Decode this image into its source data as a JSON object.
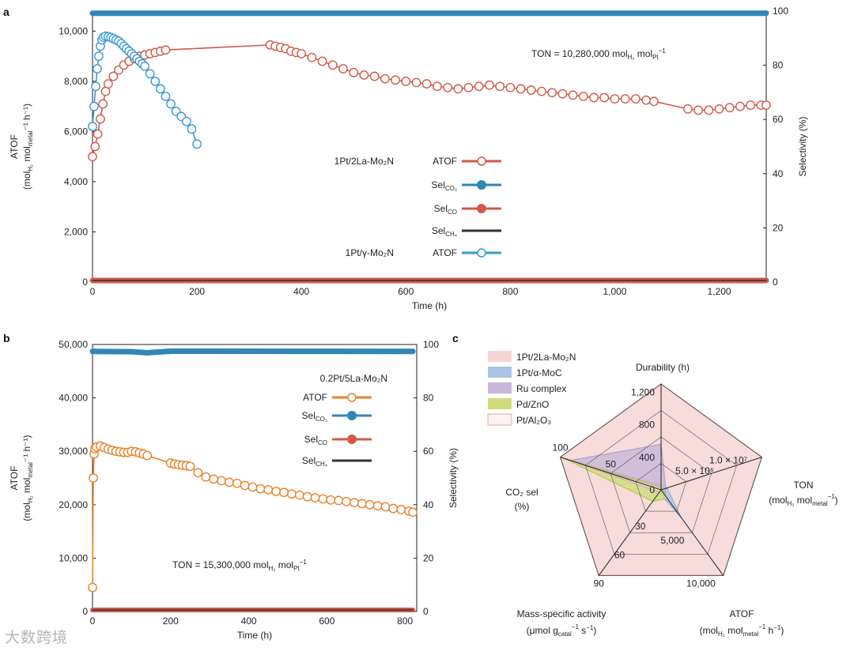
{
  "panels": {
    "a": "a",
    "b": "b",
    "c": "c"
  },
  "watermark": "大数跨境",
  "colors": {
    "red": "#d05a4a",
    "blue": "#2f86b7",
    "blue_light": "#3a9bd0",
    "orange": "#e8822a",
    "black": "#333333",
    "radar_pink": "#f7d5d5",
    "radar_blue": "#a9c4e4",
    "radar_purple": "#c7b7d8",
    "radar_green": "#cfdc7a"
  },
  "chart_data": [
    {
      "id": "a",
      "type": "scatter",
      "xlabel": "Time (h)",
      "ylabel_lines": [
        "ATOF",
        "(mol",
        "H₂",
        " mol",
        "metal",
        "⁻¹ h⁻¹)"
      ],
      "ylabel2": "Selectivity (%)",
      "xlim": [
        0,
        1290
      ],
      "ylim": [
        0,
        10800
      ],
      "y2lim": [
        0,
        100
      ],
      "xticks": [
        {
          "v": 0,
          "t": "0"
        },
        {
          "v": 200,
          "t": "200"
        },
        {
          "v": 400,
          "t": "400"
        },
        {
          "v": 600,
          "t": "600"
        },
        {
          "v": 800,
          "t": "800"
        },
        {
          "v": 1000,
          "t": "1,000"
        },
        {
          "v": 1200,
          "t": "1,200"
        }
      ],
      "yticks": [
        {
          "v": 0,
          "t": "0"
        },
        {
          "v": 2000,
          "t": "2,000"
        },
        {
          "v": 4000,
          "t": "4,000"
        },
        {
          "v": 6000,
          "t": "6,000"
        },
        {
          "v": 8000,
          "t": "8,000"
        },
        {
          "v": 10000,
          "t": "10,000"
        }
      ],
      "y2ticks": [
        {
          "v": 0,
          "t": "0"
        },
        {
          "v": 20,
          "t": "20"
        },
        {
          "v": 40,
          "t": "40"
        },
        {
          "v": 60,
          "t": "60"
        },
        {
          "v": 80,
          "t": "80"
        },
        {
          "v": 100,
          "t": "100"
        }
      ],
      "annotation": {
        "text": "TON = 10,280,000 mol",
        "sub1": "H₂",
        "mid": " mol",
        "sub2": "Pt",
        "sup": "−1"
      },
      "legend": [
        {
          "group": "1Pt/2La-Mo₂N",
          "name": "ATOF",
          "style": "open",
          "color": "#d05a4a"
        },
        {
          "group": "",
          "name": "Sel",
          "sub": "CO₂",
          "style": "filled",
          "color": "#2f86b7"
        },
        {
          "group": "",
          "name": "Sel",
          "sub": "CO",
          "style": "filled",
          "color": "#d05a4a"
        },
        {
          "group": "",
          "name": "Sel",
          "sub": "CH₄",
          "style": "line",
          "color": "#333333"
        },
        {
          "group": "1Pt/γ-Mo₂N",
          "name": "ATOF",
          "style": "open",
          "color": "#3a9bd0"
        }
      ],
      "series": [
        {
          "name": "1Pt/2La-Mo₂N ATOF",
          "axis": "left",
          "style": "open",
          "color": "#d05a4a",
          "x": [
            0,
            5,
            10,
            15,
            20,
            25,
            30,
            40,
            50,
            60,
            70,
            80,
            90,
            100,
            110,
            120,
            130,
            140,
            340,
            350,
            360,
            370,
            380,
            390,
            400,
            420,
            440,
            460,
            480,
            500,
            520,
            540,
            560,
            580,
            600,
            620,
            640,
            660,
            680,
            700,
            720,
            740,
            760,
            780,
            800,
            820,
            840,
            860,
            880,
            900,
            920,
            940,
            960,
            980,
            1000,
            1020,
            1040,
            1060,
            1075,
            1140,
            1160,
            1180,
            1200,
            1220,
            1240,
            1260,
            1280,
            1290
          ],
          "y": [
            5000,
            5400,
            5900,
            6500,
            7100,
            7600,
            7900,
            8200,
            8450,
            8650,
            8800,
            8900,
            9000,
            9050,
            9100,
            9150,
            9200,
            9250,
            9450,
            9400,
            9350,
            9300,
            9200,
            9150,
            9100,
            8950,
            8800,
            8650,
            8500,
            8350,
            8250,
            8200,
            8100,
            8050,
            8000,
            7950,
            7900,
            7800,
            7750,
            7700,
            7750,
            7800,
            7850,
            7800,
            7750,
            7700,
            7650,
            7600,
            7550,
            7500,
            7450,
            7400,
            7350,
            7350,
            7300,
            7300,
            7300,
            7250,
            7200,
            6900,
            6850,
            6850,
            6900,
            6950,
            7000,
            7050,
            7050,
            7050
          ]
        },
        {
          "name": "1Pt/γ-Mo₂N ATOF",
          "axis": "left",
          "style": "open",
          "color": "#3a9bd0",
          "x": [
            0,
            3,
            6,
            9,
            12,
            15,
            18,
            21,
            25,
            30,
            35,
            40,
            45,
            50,
            55,
            60,
            65,
            70,
            75,
            80,
            85,
            90,
            95,
            100,
            110,
            120,
            130,
            140,
            150,
            160,
            170,
            180,
            190,
            200
          ],
          "y": [
            6200,
            7000,
            7800,
            8500,
            9000,
            9400,
            9650,
            9750,
            9800,
            9780,
            9750,
            9700,
            9650,
            9600,
            9500,
            9400,
            9300,
            9200,
            9100,
            9000,
            8900,
            8800,
            8700,
            8600,
            8300,
            8000,
            7700,
            7400,
            7100,
            6800,
            6600,
            6400,
            6100,
            5500
          ]
        },
        {
          "name": "Sel CO₂",
          "axis": "right",
          "style": "band",
          "color": "#2f86b7",
          "width": 7,
          "x": [
            0,
            1290
          ],
          "y": [
            99.2,
            99.2
          ]
        },
        {
          "name": "Sel CO",
          "axis": "right",
          "style": "band",
          "color": "#d05a4a",
          "width": 7,
          "x": [
            0,
            1290
          ],
          "y": [
            0.6,
            0.6
          ]
        },
        {
          "name": "Sel CH₄",
          "axis": "right",
          "style": "line",
          "color": "#333333",
          "width": 1.5,
          "x": [
            0,
            1290
          ],
          "y": [
            0.2,
            0.2
          ]
        }
      ]
    },
    {
      "id": "b",
      "type": "scatter",
      "xlabel": "Time (h)",
      "ylabel_lines": [
        "ATOF",
        "(mol",
        "H₂",
        " mol",
        "metal",
        "⁻¹ h⁻¹)"
      ],
      "ylabel2": "Selectivity (%)",
      "xlim": [
        0,
        830
      ],
      "ylim": [
        0,
        50000
      ],
      "y2lim": [
        0,
        100
      ],
      "xticks": [
        {
          "v": 0,
          "t": "0"
        },
        {
          "v": 200,
          "t": "200"
        },
        {
          "v": 400,
          "t": "400"
        },
        {
          "v": 600,
          "t": "600"
        },
        {
          "v": 800,
          "t": "800"
        }
      ],
      "yticks": [
        {
          "v": 0,
          "t": "0"
        },
        {
          "v": 10000,
          "t": "10,000"
        },
        {
          "v": 20000,
          "t": "20,000"
        },
        {
          "v": 30000,
          "t": "30,000"
        },
        {
          "v": 40000,
          "t": "40,000"
        },
        {
          "v": 50000,
          "t": "50,000"
        }
      ],
      "y2ticks": [
        {
          "v": 0,
          "t": "0"
        },
        {
          "v": 20,
          "t": "20"
        },
        {
          "v": 40,
          "t": "40"
        },
        {
          "v": 60,
          "t": "60"
        },
        {
          "v": 80,
          "t": "80"
        },
        {
          "v": 100,
          "t": "100"
        }
      ],
      "annotation": {
        "text": "TON = 15,300,000 mol",
        "sub1": "H₂",
        "mid": " mol",
        "sub2": "Pt",
        "sup": "−1"
      },
      "legend_title": "0.2Pt/5La-Mo₂N",
      "legend": [
        {
          "name": "ATOF",
          "style": "open",
          "color": "#e8822a"
        },
        {
          "name": "Sel",
          "sub": "CO₂",
          "style": "filled",
          "color": "#2f86b7"
        },
        {
          "name": "Sel",
          "sub": "CO",
          "style": "filled",
          "color": "#d05a4a"
        },
        {
          "name": "Sel",
          "sub": "CH₄",
          "style": "line",
          "color": "#333333"
        }
      ],
      "series": [
        {
          "name": "ATOF",
          "axis": "left",
          "style": "open",
          "color": "#e8822a",
          "x": [
            0,
            2,
            4,
            6,
            10,
            20,
            30,
            40,
            50,
            60,
            70,
            80,
            90,
            100,
            110,
            120,
            130,
            140,
            200,
            210,
            220,
            230,
            240,
            250,
            270,
            290,
            310,
            330,
            350,
            370,
            390,
            410,
            430,
            450,
            470,
            490,
            510,
            530,
            550,
            570,
            590,
            610,
            630,
            650,
            670,
            690,
            710,
            730,
            750,
            770,
            790,
            810,
            820
          ],
          "y": [
            4500,
            25000,
            29500,
            30500,
            30800,
            31000,
            30700,
            30400,
            30200,
            30000,
            29900,
            29800,
            29800,
            30000,
            29900,
            29700,
            29500,
            29200,
            27800,
            27600,
            27500,
            27400,
            27300,
            27200,
            26000,
            25200,
            24800,
            24500,
            24200,
            24000,
            23600,
            23300,
            23000,
            22800,
            22500,
            22300,
            22000,
            21800,
            21500,
            21300,
            21100,
            20900,
            20800,
            20600,
            20400,
            20200,
            20000,
            19800,
            19600,
            19300,
            19100,
            18800,
            18600
          ]
        },
        {
          "name": "Sel CO₂",
          "axis": "right",
          "style": "band",
          "color": "#2f86b7",
          "width": 7,
          "x": [
            0,
            100,
            140,
            200,
            820
          ],
          "y": [
            97.4,
            97.3,
            96.9,
            97.5,
            97.4
          ]
        },
        {
          "name": "Sel CO",
          "axis": "right",
          "style": "band",
          "color": "#d05a4a",
          "width": 6,
          "x": [
            0,
            820
          ],
          "y": [
            0.6,
            0.6
          ]
        },
        {
          "name": "Sel CH₄",
          "axis": "right",
          "style": "line",
          "color": "#333333",
          "width": 1.5,
          "x": [
            0,
            820
          ],
          "y": [
            0.2,
            0.2
          ]
        }
      ]
    },
    {
      "id": "c",
      "type": "radar",
      "axes": [
        {
          "name": "Durability (h)",
          "max": 1300,
          "ticks": [
            {
              "v": 0,
              "t": "0"
            },
            {
              "v": 400,
              "t": "400"
            },
            {
              "v": 800,
              "t": "800"
            },
            {
              "v": 1200,
              "t": "1,200"
            }
          ]
        },
        {
          "name": "TON",
          "unit": "(mol",
          "max": 15000000,
          "ticks": [
            {
              "v": 5000000,
              "t": "5.0 × 10⁶"
            },
            {
              "v": 10000000,
              "t": "1.0 × 10⁷"
            }
          ]
        },
        {
          "name": "ATOF",
          "unit": "(mol",
          "max": 10000,
          "ticks": [
            {
              "v": 5000,
              "t": "5,000"
            },
            {
              "v": 10000,
              "t": "10,000"
            }
          ]
        },
        {
          "name": "Mass-specific activity",
          "unit": "(μmol g",
          "max": 90,
          "ticks": [
            {
              "v": 30,
              "t": "30"
            },
            {
              "v": 60,
              "t": "60"
            },
            {
              "v": 90,
              "t": "90"
            }
          ]
        },
        {
          "name": "CO₂ sel",
          "unit": "(%)",
          "max": 100,
          "ticks": [
            {
              "v": 50,
              "t": "50"
            },
            {
              "v": 100,
              "t": "100"
            }
          ]
        }
      ],
      "series": [
        {
          "name": "1Pt/2La-Mo₂N",
          "color": "#f7d5d5",
          "stroke": "#e6a9a9",
          "values": [
            1300,
            15000000,
            10000,
            90,
            100
          ]
        },
        {
          "name": "1Pt/α-MoC",
          "color": "#a9c4e4",
          "stroke": "#8fb0d8",
          "values": [
            60,
            900000,
            3200,
            3,
            98
          ]
        },
        {
          "name": "Ru complex",
          "color": "#c7b7d8",
          "stroke": "#b3a0c9",
          "values": [
            560,
            700000,
            600,
            1,
            90
          ]
        },
        {
          "name": "Pd/ZnO",
          "color": "#cfdc7a",
          "stroke": "#b7c659",
          "values": [
            40,
            200000,
            1000,
            12,
            96
          ]
        },
        {
          "name": "Pt/Al₂O₃",
          "color": "#fdf3f3",
          "stroke": "#e2aaaa",
          "values": [
            20,
            100000,
            200,
            2,
            92
          ]
        }
      ]
    }
  ]
}
